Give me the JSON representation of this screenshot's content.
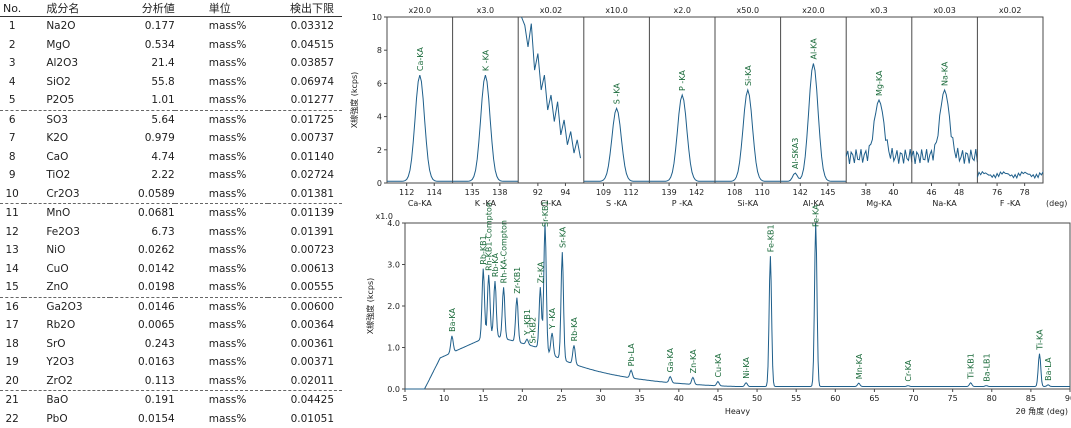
{
  "table": {
    "headers": [
      "No.",
      "成分名",
      "分析値",
      "単位",
      "検出下限"
    ],
    "rows": [
      [
        "1",
        "Na2O",
        "0.177",
        "mass%",
        "0.03312"
      ],
      [
        "2",
        "MgO",
        "0.534",
        "mass%",
        "0.04515"
      ],
      [
        "3",
        "Al2O3",
        "21.4",
        "mass%",
        "0.03857"
      ],
      [
        "4",
        "SiO2",
        "55.8",
        "mass%",
        "0.06974"
      ],
      [
        "5",
        "P2O5",
        "1.01",
        "mass%",
        "0.01277"
      ],
      [
        "6",
        "SO3",
        "5.64",
        "mass%",
        "0.01725"
      ],
      [
        "7",
        "K2O",
        "0.979",
        "mass%",
        "0.00737"
      ],
      [
        "8",
        "CaO",
        "4.74",
        "mass%",
        "0.01140"
      ],
      [
        "9",
        "TiO2",
        "2.22",
        "mass%",
        "0.02724"
      ],
      [
        "10",
        "Cr2O3",
        "0.0589",
        "mass%",
        "0.01381"
      ],
      [
        "11",
        "MnO",
        "0.0681",
        "mass%",
        "0.01139"
      ],
      [
        "12",
        "Fe2O3",
        "6.73",
        "mass%",
        "0.01391"
      ],
      [
        "13",
        "NiO",
        "0.0262",
        "mass%",
        "0.00723"
      ],
      [
        "14",
        "CuO",
        "0.0142",
        "mass%",
        "0.00613"
      ],
      [
        "15",
        "ZnO",
        "0.0198",
        "mass%",
        "0.00555"
      ],
      [
        "16",
        "Ga2O3",
        "0.0146",
        "mass%",
        "0.00600"
      ],
      [
        "17",
        "Rb2O",
        "0.0065",
        "mass%",
        "0.00364"
      ],
      [
        "18",
        "SrO",
        "0.243",
        "mass%",
        "0.00361"
      ],
      [
        "19",
        "Y2O3",
        "0.0163",
        "mass%",
        "0.00371"
      ],
      [
        "20",
        "ZrO2",
        "0.113",
        "mass%",
        "0.02011"
      ],
      [
        "21",
        "BaO",
        "0.191",
        "mass%",
        "0.04425"
      ],
      [
        "22",
        "PbO",
        "0.0154",
        "mass%",
        "0.01051"
      ]
    ]
  },
  "chart_data": [
    {
      "type": "line",
      "ylabel": "X線強度 (kcps)",
      "ylim": [
        0,
        10
      ],
      "yticks": [
        "0",
        "2",
        "4",
        "6",
        "8",
        "10"
      ],
      "xunit": "(deg)",
      "panels": [
        {
          "scale": "x20.0",
          "peak_label": "Ca-KA",
          "line_label": "Ca-KA",
          "xticks": [
            "112",
            "114"
          ],
          "peak": 6.5
        },
        {
          "scale": "x3.0",
          "peak_label": "K -KA",
          "line_label": "K -KA",
          "xticks": [
            "135",
            "138"
          ],
          "peak": 6.5
        },
        {
          "scale": "x0.02",
          "peak_label": "",
          "line_label": "Cl-KA",
          "xticks": [
            "92",
            "94"
          ],
          "peak": 10
        },
        {
          "scale": "x10.0",
          "peak_label": "S -KA",
          "line_label": "S -KA",
          "xticks": [
            "109",
            "112"
          ],
          "peak": 4.5
        },
        {
          "scale": "x2.0",
          "peak_label": "P -KA",
          "line_label": "P -KA",
          "xticks": [
            "139",
            "142"
          ],
          "peak": 5.3
        },
        {
          "scale": "x50.0",
          "peak_label": "Si-KA",
          "line_label": "Si-KA",
          "xticks": [
            "108",
            "110"
          ],
          "peak": 5.6
        },
        {
          "scale": "x20.0",
          "peak_label": "Al-KA",
          "line_label": "Al-KA",
          "xticks": [
            "142",
            "145"
          ],
          "peak": 7.2,
          "extra_label": "Al-SKA3"
        },
        {
          "scale": "x0.3",
          "peak_label": "Mg-KA",
          "line_label": "Mg-KA",
          "xticks": [
            "38",
            "40"
          ],
          "peak": 5.0
        },
        {
          "scale": "x0.03",
          "peak_label": "Na-KA",
          "line_label": "Na-KA",
          "xticks": [
            "46",
            "48"
          ],
          "peak": 5.6
        },
        {
          "scale": "x0.02",
          "peak_label": "",
          "line_label": "F -KA",
          "xticks": [
            "76",
            "78"
          ],
          "peak": 0.5
        }
      ]
    },
    {
      "type": "line",
      "scale_label": "x1.0",
      "ylabel": "X線強度 (kcps)",
      "ylim": [
        0,
        4
      ],
      "yticks": [
        "0.0",
        "1.0",
        "2.0",
        "3.0",
        "4.0"
      ],
      "xlim": [
        5,
        90
      ],
      "xticks": [
        "5",
        "10",
        "15",
        "20",
        "25",
        "30",
        "35",
        "40",
        "45",
        "50",
        "55",
        "60",
        "65",
        "70",
        "75",
        "80",
        "85",
        "90"
      ],
      "xlabel": "Heavy",
      "xunit": "2θ 角度 (deg)",
      "peaks": [
        {
          "label": "Ba-KA",
          "x": 11.0,
          "y": 1.28
        },
        {
          "label": "Rb-KB1",
          "x": 15.0,
          "y": 2.9
        },
        {
          "label": "Rh-KB1-Compton",
          "x": 15.7,
          "y": 2.75
        },
        {
          "label": "Rb-KA",
          "x": 16.5,
          "y": 2.6
        },
        {
          "label": "Rh-KA-Compton",
          "x": 17.6,
          "y": 2.45
        },
        {
          "label": "Zr-KB1",
          "x": 19.3,
          "y": 2.2
        },
        {
          "label": "Y -KB1",
          "x": 20.6,
          "y": 1.2
        },
        {
          "label": "Sr-KB2",
          "x": 21.3,
          "y": 1.0
        },
        {
          "label": "Zr-KA",
          "x": 22.3,
          "y": 2.45
        },
        {
          "label": "Sr-KB1",
          "x": 22.9,
          "y": 4.0
        },
        {
          "label": "Y -KA",
          "x": 23.8,
          "y": 1.35
        },
        {
          "label": "Sr-KA",
          "x": 25.1,
          "y": 3.3
        },
        {
          "label": "Rb-KA",
          "x": 26.6,
          "y": 1.05
        },
        {
          "label": "Pb-LA",
          "x": 33.9,
          "y": 0.45
        },
        {
          "label": "Ga-KA",
          "x": 38.9,
          "y": 0.3
        },
        {
          "label": "Zn-KA",
          "x": 41.8,
          "y": 0.28
        },
        {
          "label": "Cu-KA",
          "x": 45.0,
          "y": 0.18
        },
        {
          "label": "Ni-KA",
          "x": 48.6,
          "y": 0.15
        },
        {
          "label": "Fe-KB1",
          "x": 51.7,
          "y": 3.2
        },
        {
          "label": "Fe-KA",
          "x": 57.5,
          "y": 4.0
        },
        {
          "label": "Mn-KA",
          "x": 63.0,
          "y": 0.14
        },
        {
          "label": "Cr-KA",
          "x": 69.3,
          "y": 0.08
        },
        {
          "label": "Ti-KB1",
          "x": 77.3,
          "y": 0.15
        },
        {
          "label": "Ba-LB1",
          "x": 79.3,
          "y": 0.08
        },
        {
          "label": "Ti-KA",
          "x": 86.1,
          "y": 0.85
        },
        {
          "label": "Ba-LA",
          "x": 87.2,
          "y": 0.1
        }
      ]
    }
  ],
  "colors": {
    "axis": "#4a4a4a",
    "curve": "#1f5f8b",
    "label": "#1a6a3a",
    "text": "#1e1e1e"
  }
}
